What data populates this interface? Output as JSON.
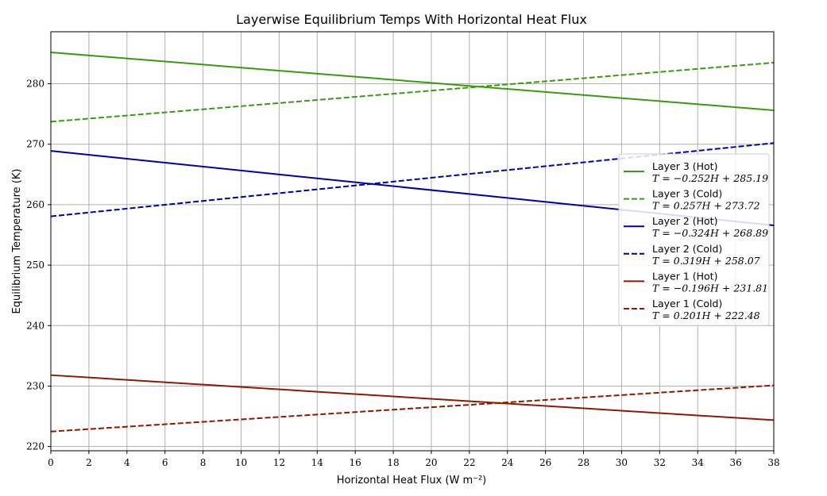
{
  "chart_data": {
    "type": "line",
    "title": "Layerwise Equilibrium Temps With Horizontal Heat Flux",
    "xlabel": "Horizontal Heat Flux (W m⁻²)",
    "ylabel": "Equilibrium Temperature (K)",
    "xlim": [
      0,
      38
    ],
    "ylim": [
      219.3,
      288.6
    ],
    "x_ticks": [
      0,
      2,
      4,
      6,
      8,
      10,
      12,
      14,
      16,
      18,
      20,
      22,
      24,
      26,
      28,
      30,
      32,
      34,
      36,
      38
    ],
    "y_ticks": [
      220,
      230,
      240,
      250,
      260,
      270,
      280
    ],
    "grid": true,
    "legend_position": "center-right",
    "series": [
      {
        "name": "Layer 3 (Hot)",
        "equation": "T = −0.252H + 285.19",
        "slope": -0.252,
        "intercept": 285.19,
        "color": "#3a9a12",
        "style": "solid"
      },
      {
        "name": "Layer 3 (Cold)",
        "equation": "T = 0.257H + 273.72",
        "slope": 0.257,
        "intercept": 273.72,
        "color": "#3a9a12",
        "style": "dashed"
      },
      {
        "name": "Layer 2 (Hot)",
        "equation": "T = −0.324H + 268.89",
        "slope": -0.324,
        "intercept": 268.89,
        "color": "#0000aa",
        "style": "solid"
      },
      {
        "name": "Layer 2 (Cold)",
        "equation": "T = 0.319H + 258.07",
        "slope": 0.319,
        "intercept": 258.07,
        "color": "#0000aa",
        "style": "dashed"
      },
      {
        "name": "Layer 1 (Hot)",
        "equation": "T = −0.196H + 231.81",
        "slope": -0.196,
        "intercept": 231.81,
        "color": "#8b1a00",
        "style": "solid"
      },
      {
        "name": "Layer 1 (Cold)",
        "equation": "T = 0.201H + 222.48",
        "slope": 0.201,
        "intercept": 222.48,
        "color": "#8b1a00",
        "style": "dashed"
      }
    ]
  }
}
